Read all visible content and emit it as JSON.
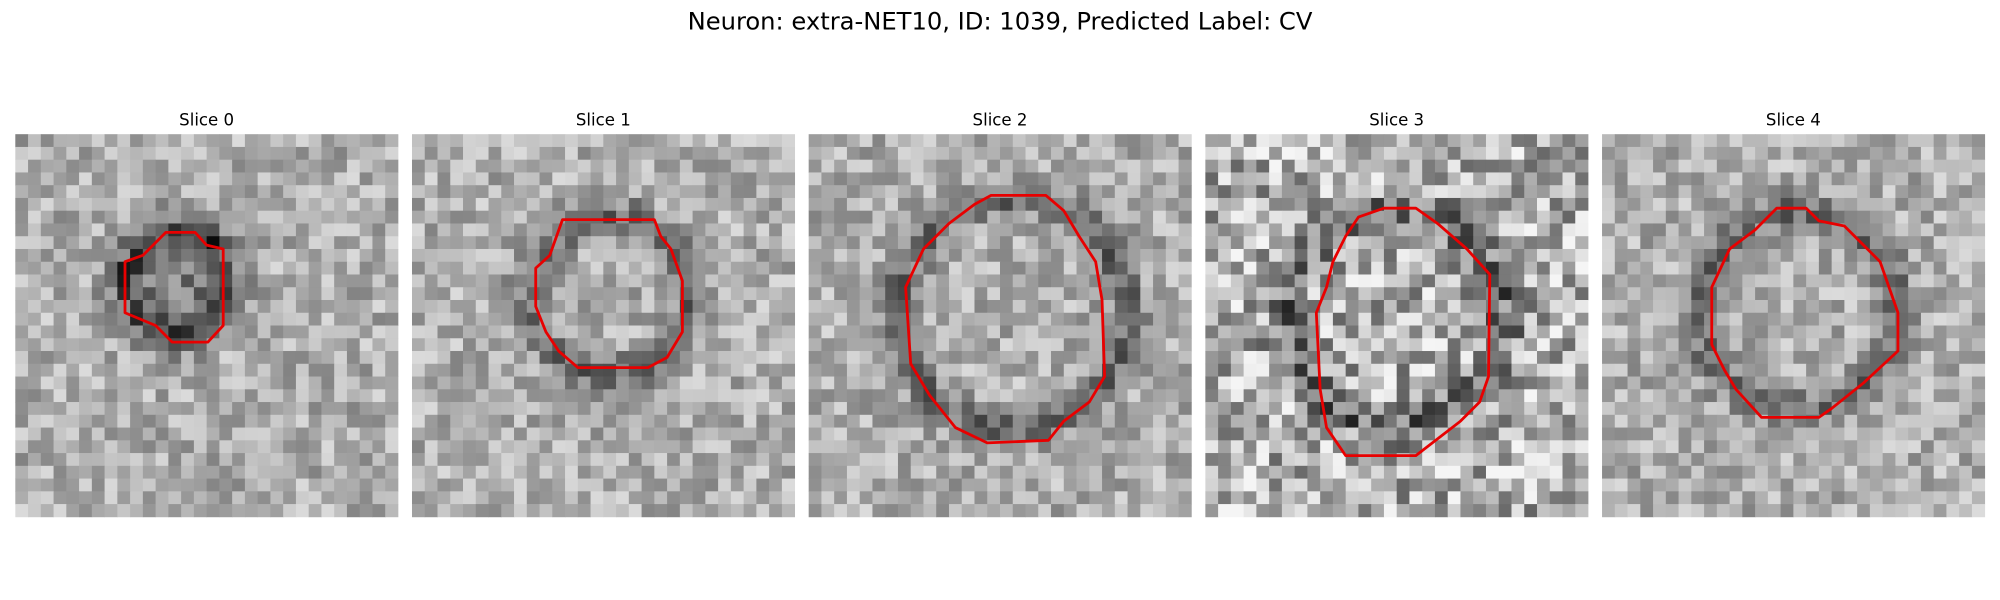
{
  "figure": {
    "title": "Neuron: extra-NET10, ID: 1039, Predicted Label: CV",
    "panels": [
      {
        "title": "Slice 0"
      },
      {
        "title": "Slice 1"
      },
      {
        "title": "Slice 2"
      },
      {
        "title": "Slice 3"
      },
      {
        "title": "Slice 4"
      }
    ]
  }
}
